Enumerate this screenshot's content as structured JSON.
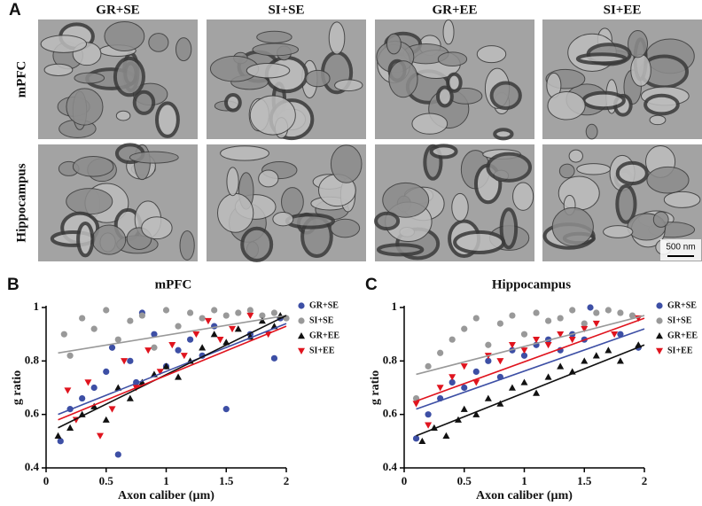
{
  "panel_a": {
    "label": "A",
    "columns": [
      "GR+SE",
      "SI+SE",
      "GR+EE",
      "SI+EE"
    ],
    "rows": [
      "mPFC",
      "Hippocampus"
    ],
    "scale_bar": "500 nm"
  },
  "chart_data": [
    {
      "type": "scatter",
      "panel_label": "B",
      "title": "mPFC",
      "x_label": "Axon caliber (µm)",
      "y_label": "g ratio",
      "xlim": [
        0,
        2
      ],
      "ylim": [
        0.4,
        1
      ],
      "xticks": [
        0,
        0.5,
        1,
        1.5,
        2
      ],
      "yticks": [
        0.4,
        0.6,
        0.8,
        1
      ],
      "series": [
        {
          "name": "GR+SE",
          "color": "#3d4fa5",
          "marker": "circle",
          "x": [
            0.12,
            0.2,
            0.3,
            0.4,
            0.5,
            0.55,
            0.6,
            0.7,
            0.75,
            0.8,
            0.9,
            1.0,
            1.1,
            1.2,
            1.3,
            1.4,
            1.5,
            1.7,
            1.9,
            1.95
          ],
          "values": [
            0.5,
            0.62,
            0.66,
            0.7,
            0.76,
            0.85,
            0.45,
            0.8,
            0.72,
            0.98,
            0.9,
            0.78,
            0.84,
            0.88,
            0.82,
            0.93,
            0.62,
            0.9,
            0.81,
            0.96
          ],
          "trend": {
            "x": [
              0.1,
              2
            ],
            "values": [
              0.6,
              0.94
            ]
          }
        },
        {
          "name": "SI+SE",
          "color": "#999999",
          "marker": "circle",
          "x": [
            0.15,
            0.2,
            0.3,
            0.4,
            0.5,
            0.6,
            0.7,
            0.8,
            0.9,
            1.0,
            1.1,
            1.2,
            1.3,
            1.4,
            1.5,
            1.6,
            1.7,
            1.8,
            1.9,
            2.0
          ],
          "values": [
            0.9,
            0.82,
            0.96,
            0.92,
            0.99,
            0.88,
            0.95,
            0.97,
            0.85,
            0.99,
            0.93,
            0.98,
            0.96,
            0.99,
            0.97,
            0.98,
            0.99,
            0.97,
            0.98,
            0.96
          ],
          "trend": {
            "x": [
              0.1,
              2
            ],
            "values": [
              0.83,
              0.97
            ]
          }
        },
        {
          "name": "GR+EE",
          "color": "#111111",
          "marker": "triangle-up",
          "x": [
            0.1,
            0.2,
            0.3,
            0.4,
            0.5,
            0.6,
            0.7,
            0.8,
            0.9,
            1.0,
            1.1,
            1.2,
            1.3,
            1.4,
            1.5,
            1.6,
            1.7,
            1.8,
            1.9,
            1.95
          ],
          "values": [
            0.52,
            0.55,
            0.6,
            0.63,
            0.58,
            0.7,
            0.66,
            0.72,
            0.75,
            0.78,
            0.74,
            0.8,
            0.85,
            0.9,
            0.87,
            0.92,
            0.89,
            0.95,
            0.93,
            0.97
          ],
          "trend": {
            "x": [
              0.1,
              2
            ],
            "values": [
              0.55,
              0.97
            ]
          }
        },
        {
          "name": "SI+EE",
          "color": "#e0141e",
          "marker": "triangle-down",
          "x": [
            0.18,
            0.25,
            0.35,
            0.45,
            0.55,
            0.65,
            0.75,
            0.85,
            0.95,
            1.05,
            1.15,
            1.25,
            1.35,
            1.45,
            1.55,
            1.7,
            1.85
          ],
          "values": [
            0.69,
            0.58,
            0.72,
            0.52,
            0.62,
            0.8,
            0.7,
            0.84,
            0.76,
            0.86,
            0.82,
            0.9,
            0.95,
            0.88,
            0.92,
            0.97,
            0.9
          ],
          "trend": {
            "x": [
              0.1,
              2
            ],
            "values": [
              0.58,
              0.93
            ]
          }
        }
      ]
    },
    {
      "type": "scatter",
      "panel_label": "C",
      "title": "Hippocampus",
      "x_label": "Axon caliber (µm)",
      "y_label": "g ratio",
      "xlim": [
        0,
        2
      ],
      "ylim": [
        0.4,
        1
      ],
      "xticks": [
        0,
        0.5,
        1,
        1.5,
        2
      ],
      "yticks": [
        0.4,
        0.6,
        0.8,
        1
      ],
      "series": [
        {
          "name": "GR+SE",
          "color": "#3d4fa5",
          "marker": "circle",
          "x": [
            0.1,
            0.2,
            0.3,
            0.4,
            0.5,
            0.6,
            0.7,
            0.8,
            0.9,
            1.0,
            1.1,
            1.2,
            1.3,
            1.4,
            1.5,
            1.55,
            1.8,
            1.95
          ],
          "values": [
            0.51,
            0.6,
            0.66,
            0.72,
            0.7,
            0.76,
            0.8,
            0.74,
            0.84,
            0.82,
            0.86,
            0.88,
            0.84,
            0.9,
            0.88,
            1.0,
            0.9,
            0.85
          ],
          "trend": {
            "x": [
              0.1,
              2
            ],
            "values": [
              0.62,
              0.92
            ]
          }
        },
        {
          "name": "SI+SE",
          "color": "#999999",
          "marker": "circle",
          "x": [
            0.1,
            0.2,
            0.3,
            0.4,
            0.5,
            0.6,
            0.7,
            0.8,
            0.9,
            1.0,
            1.1,
            1.2,
            1.3,
            1.4,
            1.5,
            1.6,
            1.7,
            1.8,
            1.9
          ],
          "values": [
            0.66,
            0.78,
            0.83,
            0.88,
            0.92,
            0.96,
            0.86,
            0.94,
            0.97,
            0.9,
            0.98,
            0.95,
            0.96,
            0.99,
            0.94,
            0.98,
            0.99,
            0.98,
            0.97
          ],
          "trend": {
            "x": [
              0.1,
              2
            ],
            "values": [
              0.75,
              0.97
            ]
          }
        },
        {
          "name": "GR+EE",
          "color": "#111111",
          "marker": "triangle-up",
          "x": [
            0.15,
            0.25,
            0.35,
            0.45,
            0.5,
            0.6,
            0.7,
            0.8,
            0.9,
            1.0,
            1.1,
            1.2,
            1.3,
            1.4,
            1.5,
            1.6,
            1.7,
            1.8,
            1.95
          ],
          "values": [
            0.5,
            0.55,
            0.52,
            0.58,
            0.62,
            0.6,
            0.66,
            0.64,
            0.7,
            0.72,
            0.68,
            0.74,
            0.78,
            0.76,
            0.8,
            0.82,
            0.84,
            0.8,
            0.86
          ],
          "trend": {
            "x": [
              0.1,
              2
            ],
            "values": [
              0.52,
              0.86
            ]
          }
        },
        {
          "name": "SI+EE",
          "color": "#e0141e",
          "marker": "triangle-down",
          "x": [
            0.1,
            0.2,
            0.3,
            0.4,
            0.5,
            0.6,
            0.7,
            0.8,
            0.9,
            1.0,
            1.1,
            1.2,
            1.3,
            1.4,
            1.5,
            1.6,
            1.75,
            1.95
          ],
          "values": [
            0.64,
            0.56,
            0.7,
            0.74,
            0.78,
            0.72,
            0.82,
            0.8,
            0.86,
            0.84,
            0.88,
            0.86,
            0.9,
            0.88,
            0.92,
            0.94,
            0.9,
            0.96
          ],
          "trend": {
            "x": [
              0.1,
              2
            ],
            "values": [
              0.65,
              0.96
            ]
          }
        }
      ]
    }
  ]
}
